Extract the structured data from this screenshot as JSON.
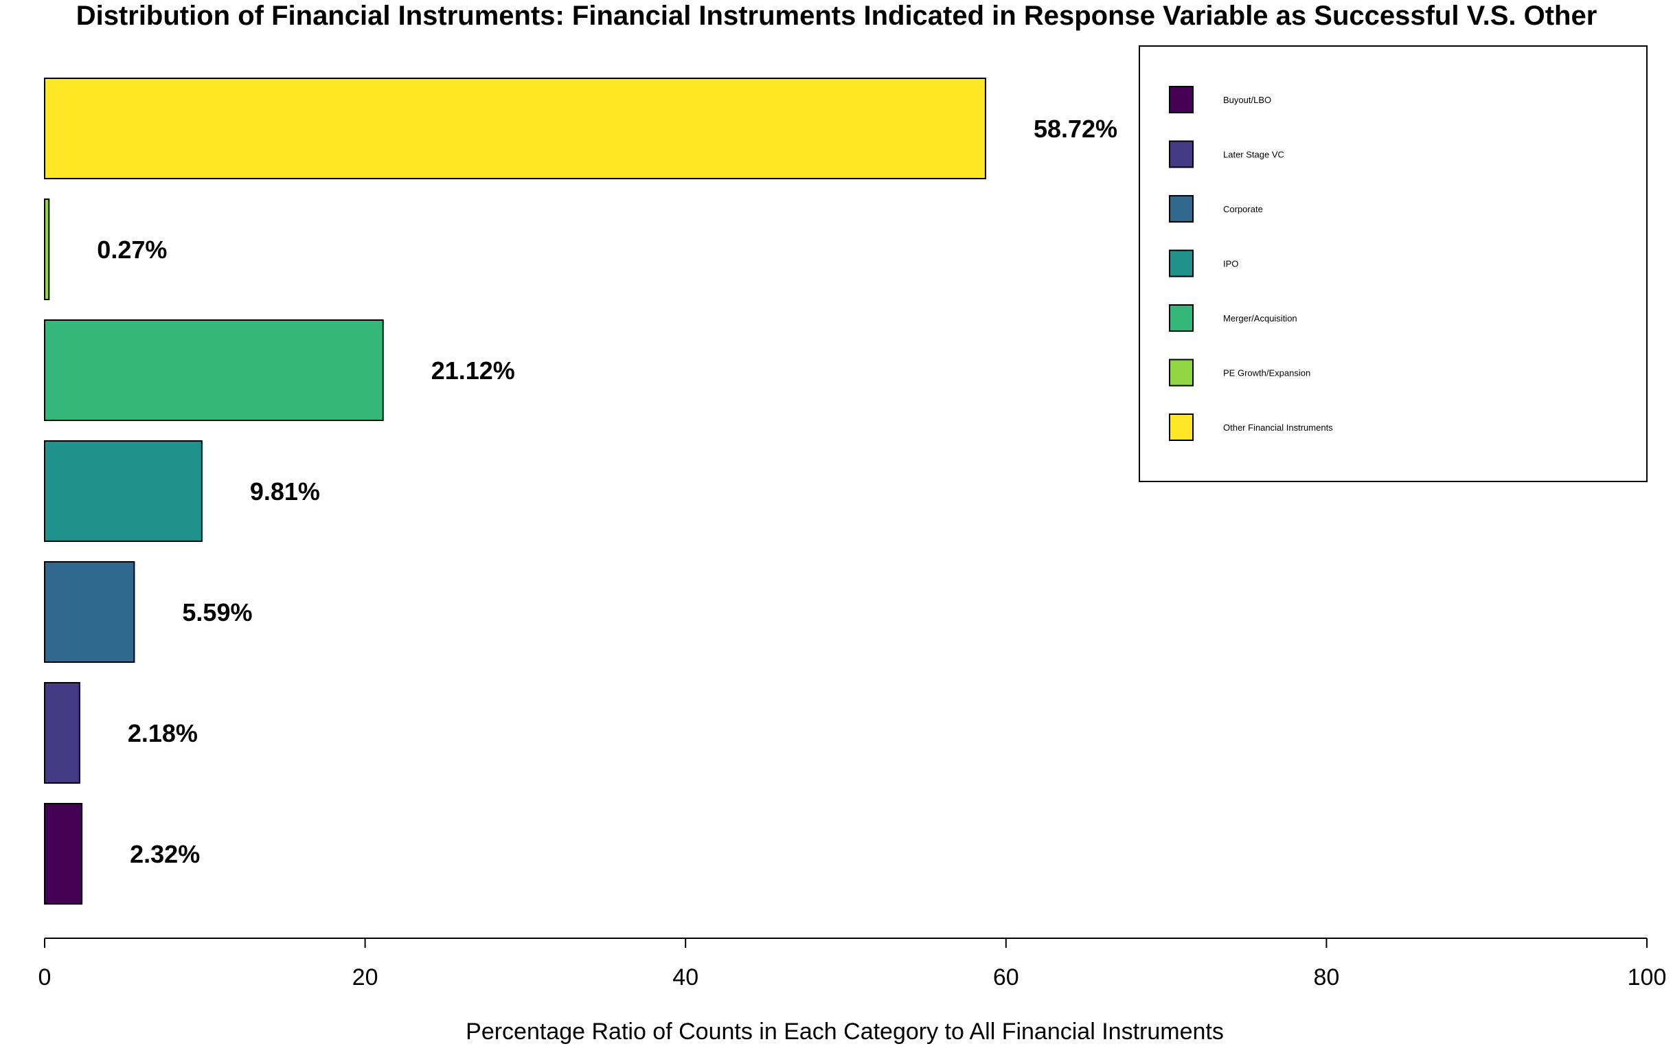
{
  "chart_data": {
    "type": "bar",
    "orientation": "horizontal",
    "title": "Distribution of Financial Instruments: Financial Instruments Indicated in Response Variable as Successful V.S. Other",
    "xlabel": "Percentage Ratio of Counts in Each Category to All Financial Instruments",
    "ylabel": "",
    "xlim": [
      0,
      100
    ],
    "x_ticks": [
      "0",
      "20",
      "40",
      "60",
      "80",
      "100"
    ],
    "grid": false,
    "legend_position": "top-right",
    "categories": [
      "Buyout/LBO",
      "Later Stage VC",
      "Corporate",
      "IPO",
      "Merger/Acquisition",
      "PE Growth/Expansion",
      "Other Financial Instruments"
    ],
    "values": [
      2.32,
      2.18,
      5.59,
      9.81,
      21.12,
      0.27,
      58.72
    ],
    "data_labels": [
      "2.32%",
      "2.18%",
      "5.59%",
      "9.81%",
      "21.12%",
      "0.27%",
      "58.72%"
    ],
    "colors": [
      "#440154",
      "#443983",
      "#31688e",
      "#21918c",
      "#35b779",
      "#90d743",
      "#fde725"
    ]
  }
}
